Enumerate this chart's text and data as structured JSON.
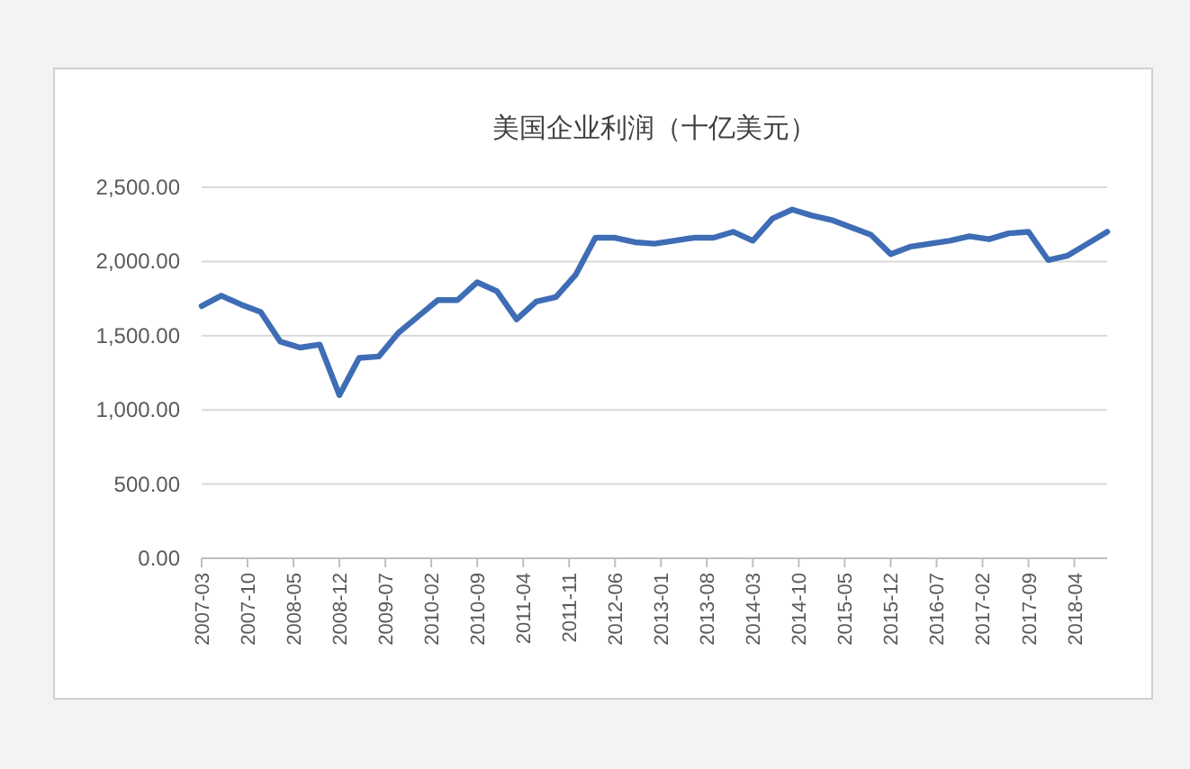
{
  "chart_data": {
    "type": "line",
    "title": "美国企业利润（十亿美元）",
    "x": [
      "2007-03",
      "2007-06",
      "2007-09",
      "2007-12",
      "2008-03",
      "2008-06",
      "2008-09",
      "2008-12",
      "2009-03",
      "2009-06",
      "2009-09",
      "2009-12",
      "2010-03",
      "2010-06",
      "2010-09",
      "2010-12",
      "2011-03",
      "2011-06",
      "2011-09",
      "2011-12",
      "2012-03",
      "2012-06",
      "2012-09",
      "2012-12",
      "2013-03",
      "2013-06",
      "2013-09",
      "2013-12",
      "2014-03",
      "2014-06",
      "2014-09",
      "2014-12",
      "2015-03",
      "2015-06",
      "2015-09",
      "2015-12",
      "2016-03",
      "2016-06",
      "2016-09",
      "2016-12",
      "2017-03",
      "2017-06",
      "2017-09",
      "2017-12",
      "2018-03",
      "2018-06",
      "2018-09"
    ],
    "series": [
      {
        "color": "#3e6db5",
        "values": [
          1700,
          1770,
          1710,
          1660,
          1460,
          1420,
          1440,
          1100,
          1350,
          1360,
          1520,
          1630,
          1740,
          1740,
          1860,
          1800,
          1610,
          1730,
          1760,
          1910,
          2160,
          2160,
          2130,
          2120,
          2140,
          2160,
          2160,
          2200,
          2140,
          2290,
          2350,
          2310,
          2280,
          2230,
          2180,
          2050,
          2100,
          2120,
          2140,
          2170,
          2150,
          2190,
          2200,
          2010,
          2040,
          2120,
          2200
        ]
      }
    ],
    "xlim": [
      "2007-03",
      "2018-09"
    ],
    "xticks": [
      "2007-03",
      "2007-10",
      "2008-05",
      "2008-12",
      "2009-07",
      "2010-02",
      "2010-09",
      "2011-04",
      "2011-11",
      "2012-06",
      "2013-01",
      "2013-08",
      "2014-03",
      "2014-10",
      "2015-05",
      "2015-12",
      "2016-07",
      "2017-02",
      "2017-09",
      "2018-04"
    ],
    "ylim": [
      0,
      2500
    ],
    "yticks": [
      {
        "value": 0,
        "label": "0.00"
      },
      {
        "value": 500,
        "label": "500.00"
      },
      {
        "value": 1000,
        "label": "1,000.00"
      },
      {
        "value": 1500,
        "label": "1,500.00"
      },
      {
        "value": 2000,
        "label": "2,000.00"
      },
      {
        "value": 2500,
        "label": "2,500.00"
      }
    ],
    "grid": "y"
  }
}
